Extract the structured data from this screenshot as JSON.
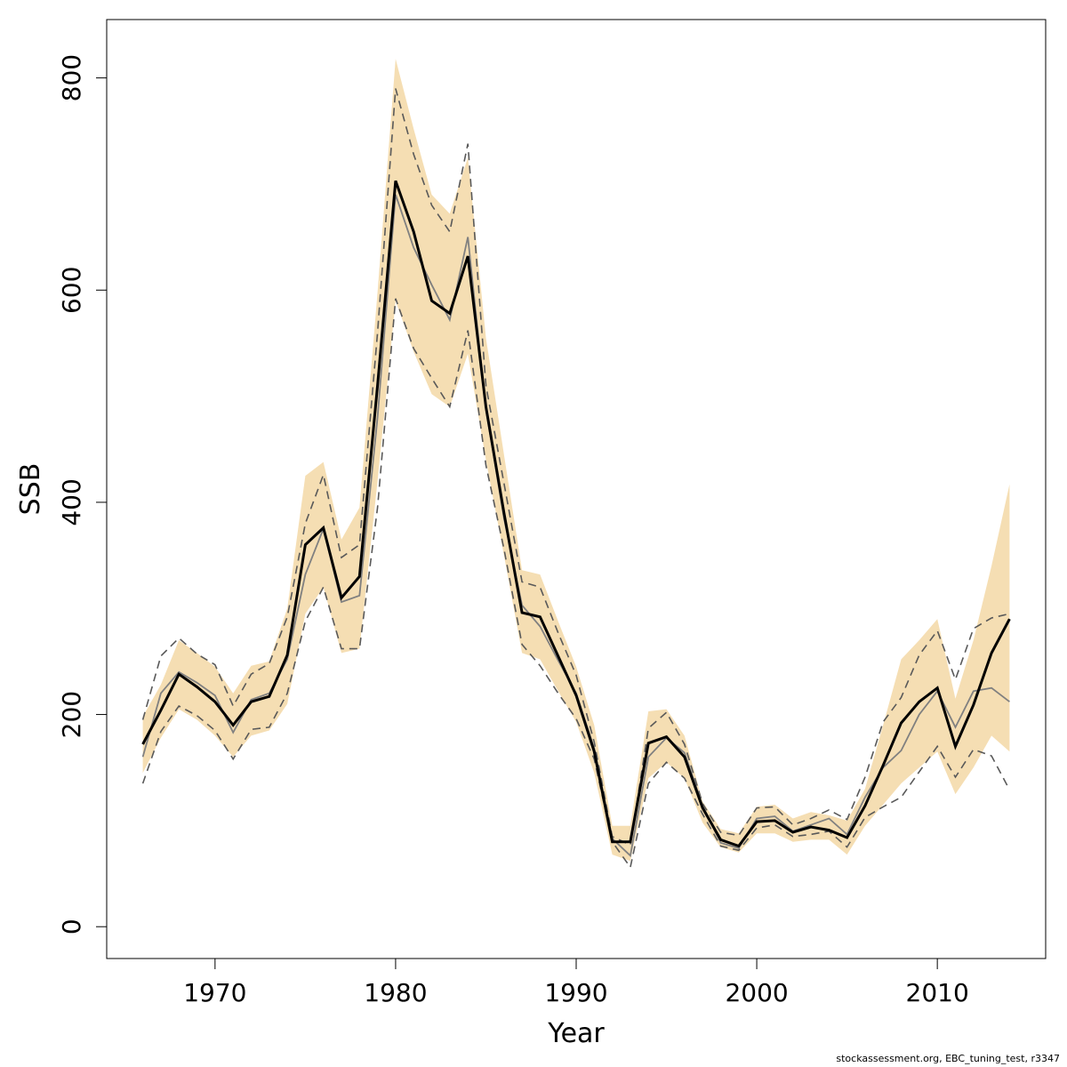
{
  "chart_data": {
    "type": "line",
    "title": "",
    "xlabel": "Year",
    "ylabel": "SSB",
    "xlim": [
      1964,
      2016
    ],
    "ylim": [
      -30,
      855
    ],
    "x_ticks": [
      1970,
      1980,
      1990,
      2000,
      2010
    ],
    "y_ticks": [
      0,
      200,
      400,
      600,
      800
    ],
    "grid": false,
    "legend": "none",
    "x": [
      1966,
      1967,
      1968,
      1969,
      1970,
      1971,
      1972,
      1973,
      1974,
      1975,
      1976,
      1977,
      1978,
      1979,
      1980,
      1981,
      1982,
      1983,
      1984,
      1985,
      1986,
      1987,
      1988,
      1989,
      1990,
      1991,
      1992,
      1993,
      1994,
      1995,
      1996,
      1997,
      1998,
      1999,
      2000,
      2001,
      2002,
      2003,
      2004,
      2005,
      2006,
      2007,
      2008,
      2009,
      2010,
      2011,
      2012,
      2013,
      2014
    ],
    "series": [
      {
        "role": "band_upper",
        "values": [
          198,
          228,
          270,
          258,
          245,
          220,
          246,
          250,
          300,
          425,
          438,
          365,
          395,
          598,
          818,
          752,
          690,
          672,
          725,
          555,
          445,
          336,
          332,
          288,
          245,
          190,
          95,
          95,
          203,
          205,
          180,
          118,
          92,
          88,
          113,
          115,
          102,
          108,
          105,
          100,
          130,
          190,
          252,
          270,
          290,
          215,
          270,
          340,
          417
        ]
      },
      {
        "role": "band_lower",
        "values": [
          145,
          178,
          205,
          195,
          180,
          160,
          180,
          185,
          210,
          295,
          320,
          258,
          262,
          420,
          590,
          542,
          502,
          490,
          540,
          440,
          350,
          258,
          252,
          222,
          193,
          145,
          68,
          62,
          140,
          155,
          140,
          98,
          75,
          70,
          88,
          88,
          80,
          82,
          82,
          68,
          95,
          115,
          135,
          150,
          165,
          125,
          150,
          180,
          165
        ]
      },
      {
        "role": "central_estimate",
        "values": [
          172,
          204,
          238,
          226,
          212,
          190,
          212,
          217,
          256,
          360,
          376,
          310,
          330,
          510,
          703,
          655,
          590,
          578,
          632,
          490,
          390,
          296,
          292,
          255,
          218,
          165,
          80,
          80,
          173,
          179,
          160,
          112,
          82,
          76,
          99,
          100,
          89,
          94,
          91,
          84,
          114,
          152,
          192,
          212,
          225,
          170,
          209,
          258,
          290
        ]
      },
      {
        "role": "alternative_estimate",
        "values": [
          160,
          220,
          240,
          230,
          218,
          183,
          214,
          220,
          252,
          332,
          375,
          306,
          312,
          480,
          690,
          640,
          605,
          572,
          650,
          488,
          385,
          303,
          283,
          251,
          220,
          168,
          83,
          67,
          160,
          178,
          164,
          114,
          79,
          74,
          102,
          104,
          90,
          96,
          102,
          87,
          122,
          150,
          166,
          200,
          222,
          188,
          222,
          225,
          212
        ]
      },
      {
        "role": "alternative_upper",
        "values": [
          195,
          255,
          272,
          257,
          247,
          208,
          238,
          248,
          292,
          380,
          426,
          348,
          360,
          560,
          790,
          728,
          680,
          655,
          738,
          510,
          418,
          325,
          320,
          277,
          237,
          174,
          85,
          77,
          187,
          202,
          172,
          116,
          89,
          86,
          112,
          113,
          96,
          102,
          110,
          101,
          141,
          193,
          216,
          256,
          279,
          233,
          281,
          291,
          295
        ]
      },
      {
        "role": "alternative_lower",
        "values": [
          135,
          184,
          208,
          199,
          185,
          158,
          186,
          188,
          220,
          288,
          320,
          262,
          262,
          395,
          592,
          545,
          517,
          490,
          562,
          435,
          356,
          266,
          246,
          220,
          196,
          158,
          80,
          56,
          135,
          155,
          140,
          106,
          76,
          72,
          93,
          96,
          85,
          87,
          90,
          75,
          103,
          113,
          122,
          146,
          170,
          141,
          167,
          161,
          129
        ]
      }
    ],
    "colors": {
      "band": "#f5deb3",
      "central": "#000000",
      "alternative": "#808080",
      "alternative_dashed": "#595959",
      "axis": "#000000"
    }
  },
  "footer": {
    "text": "stockassessment.org, EBC_tuning_test, r3347"
  }
}
